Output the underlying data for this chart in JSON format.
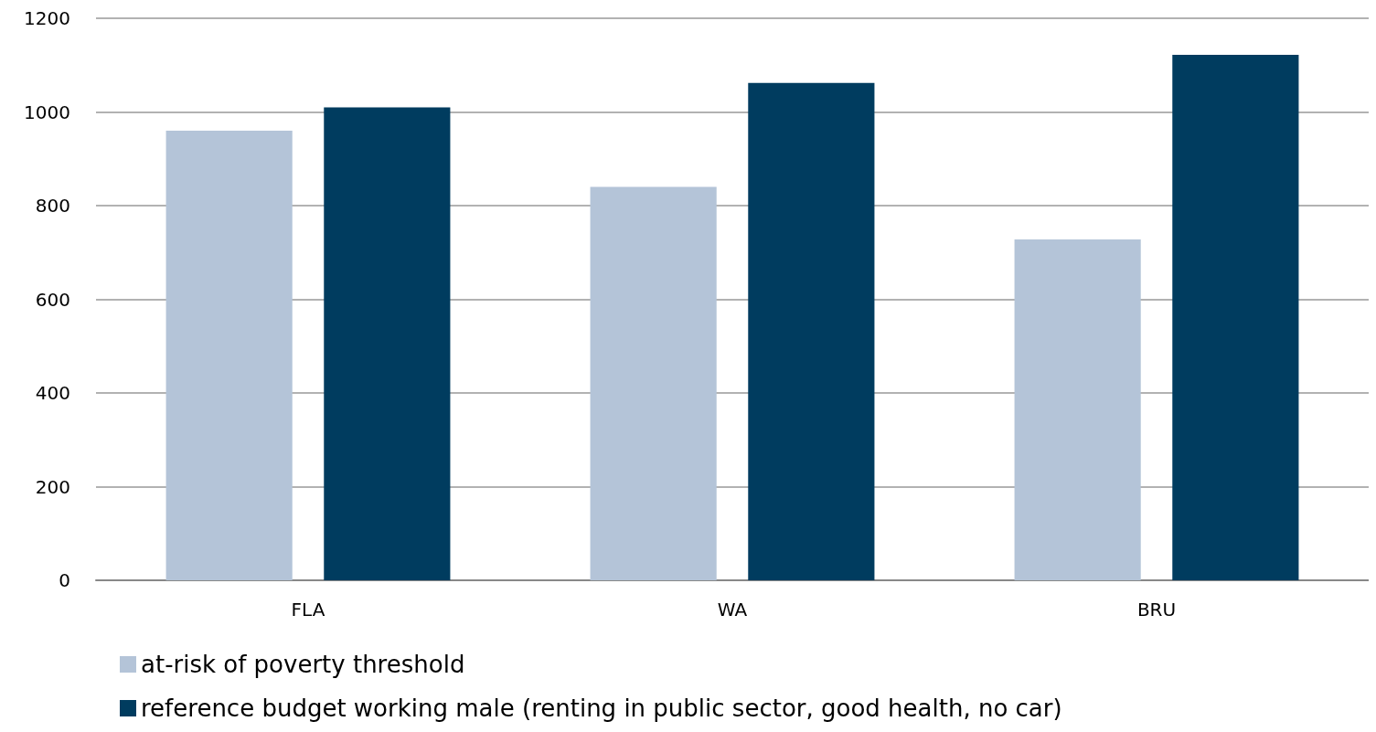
{
  "chart_data": {
    "type": "bar",
    "categories": [
      "FLA",
      "WA",
      "BRU"
    ],
    "series": [
      {
        "name": "at-risk of poverty threshold",
        "color": "#b4c4d8",
        "values": [
          960,
          840,
          728
        ]
      },
      {
        "name": "reference budget working male (renting in public sector, good health, no car)",
        "color": "#003c5f",
        "values": [
          1010,
          1062,
          1122
        ]
      }
    ],
    "ylim": [
      0,
      1200
    ],
    "yticks": [
      0,
      200,
      400,
      600,
      800,
      1000,
      1200
    ],
    "grid": "y",
    "legend": "bottom left"
  }
}
